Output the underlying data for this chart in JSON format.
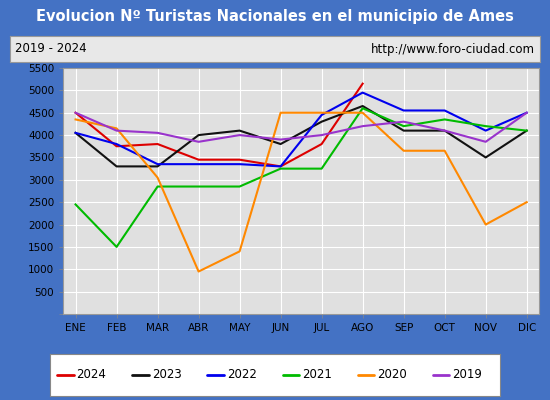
{
  "title": "Evolucion Nº Turistas Nacionales en el municipio de Ames",
  "subtitle_left": "2019 - 2024",
  "subtitle_right": "http://www.foro-ciudad.com",
  "months": [
    "ENE",
    "FEB",
    "MAR",
    "ABR",
    "MAY",
    "JUN",
    "JUL",
    "AGO",
    "SEP",
    "OCT",
    "NOV",
    "DIC"
  ],
  "series": {
    "2024": [
      4500,
      3750,
      3800,
      3450,
      3450,
      3300,
      3800,
      5150,
      null,
      null,
      null,
      null
    ],
    "2023": [
      4050,
      3300,
      3300,
      4000,
      4100,
      3800,
      4300,
      4650,
      4100,
      4100,
      3500,
      4100
    ],
    "2022": [
      4050,
      3800,
      3350,
      3350,
      3350,
      3300,
      4450,
      4950,
      4550,
      4550,
      4100,
      4500
    ],
    "2021": [
      2450,
      1500,
      2850,
      2850,
      2850,
      3250,
      3250,
      4600,
      4200,
      4350,
      4200,
      4100
    ],
    "2020": [
      4350,
      4150,
      3050,
      950,
      1400,
      4500,
      4500,
      4500,
      3650,
      3650,
      2000,
      2500
    ],
    "2019": [
      4500,
      4100,
      4050,
      3850,
      4000,
      3900,
      4000,
      4200,
      4300,
      4100,
      3850,
      4500
    ]
  },
  "colors": {
    "2024": "#dd0000",
    "2023": "#111111",
    "2022": "#0000ee",
    "2021": "#00bb00",
    "2020": "#ff8800",
    "2019": "#9933cc"
  },
  "years_order": [
    "2024",
    "2023",
    "2022",
    "2021",
    "2020",
    "2019"
  ],
  "ylim": [
    0,
    5500
  ],
  "yticks": [
    0,
    500,
    1000,
    1500,
    2000,
    2500,
    3000,
    3500,
    4000,
    4500,
    5000,
    5500
  ],
  "title_bgcolor": "#4472c4",
  "title_fgcolor": "#ffffff",
  "plot_bgcolor": "#e0e0e0",
  "subtitle_bgcolor": "#e8e8e8",
  "border_color": "#4472c4",
  "grid_color": "#ffffff"
}
